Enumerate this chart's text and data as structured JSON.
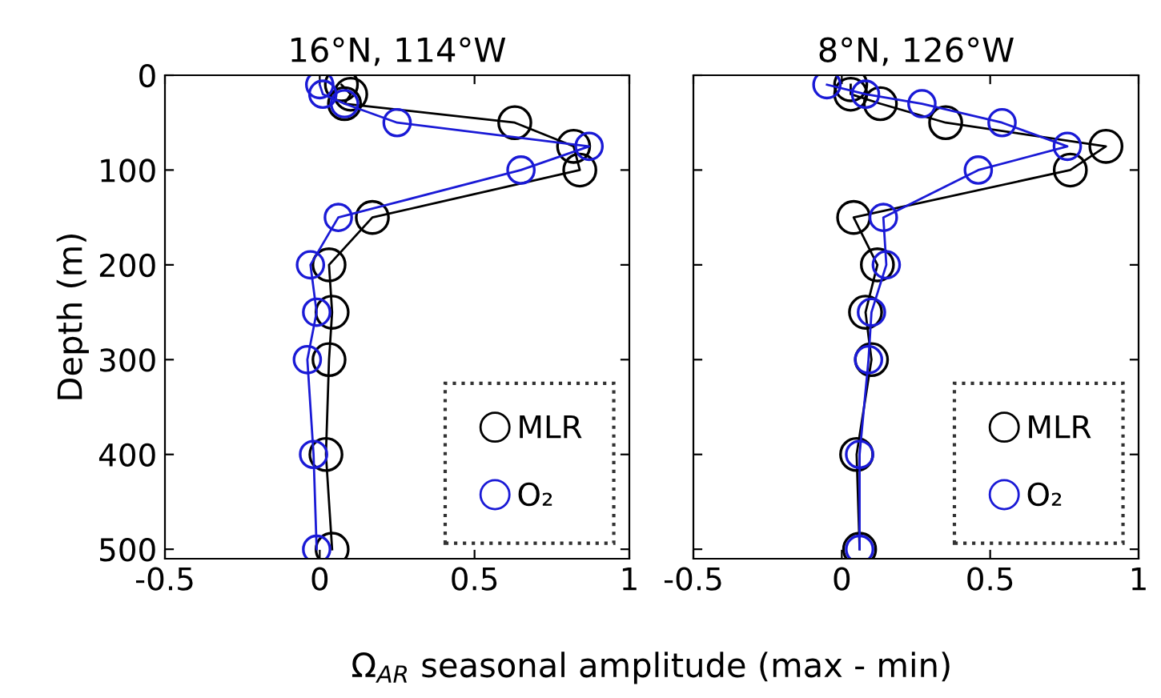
{
  "chart_data": [
    {
      "type": "line",
      "title": "16°N, 114°W",
      "ylabel": "Depth (m)",
      "series": [
        {
          "name": "MLR",
          "color": "#000000",
          "x": [
            0.07,
            0.1,
            0.08,
            0.63,
            0.82,
            0.84,
            0.17,
            0.03,
            0.04,
            0.03,
            0.02,
            0.04
          ],
          "values": [
            10,
            20,
            30,
            50,
            75,
            100,
            150,
            200,
            250,
            300,
            400,
            500
          ]
        },
        {
          "name": "O₂",
          "color": "#1a1ad6",
          "x": [
            0.0,
            0.01,
            0.08,
            0.25,
            0.87,
            0.65,
            0.06,
            -0.03,
            -0.01,
            -0.04,
            -0.02,
            -0.01
          ],
          "values": [
            10,
            20,
            30,
            50,
            75,
            100,
            150,
            200,
            250,
            300,
            400,
            500
          ]
        }
      ],
      "xlim": [
        -0.5,
        1
      ],
      "xticks": [
        -0.5,
        0,
        0.5,
        1
      ],
      "ylim": [
        510,
        0
      ],
      "yticks": [
        0,
        100,
        200,
        300,
        400,
        500
      ],
      "marker": "circle",
      "line_style": "solid",
      "legend": "bottom right",
      "grid": false
    },
    {
      "type": "line",
      "title": "8°N, 126°W",
      "xlabel": "Ω$_{AR}$ seasonal amplitude (max - min)",
      "series": [
        {
          "name": "MLR",
          "color": "#000000",
          "x": [
            0.03,
            0.03,
            0.13,
            0.35,
            0.89,
            0.77,
            0.04,
            0.12,
            0.08,
            0.1,
            0.05,
            0.06
          ],
          "values": [
            10,
            20,
            30,
            50,
            75,
            100,
            150,
            200,
            250,
            300,
            400,
            500
          ]
        },
        {
          "name": "O₂",
          "color": "#1a1ad6",
          "x": [
            -0.05,
            0.08,
            0.27,
            0.54,
            0.76,
            0.46,
            0.14,
            0.15,
            0.1,
            0.09,
            0.06,
            0.06
          ],
          "values": [
            10,
            20,
            30,
            50,
            75,
            100,
            150,
            200,
            250,
            300,
            400,
            500
          ]
        }
      ],
      "xlim": [
        -0.5,
        1
      ],
      "xticks": [
        -0.5,
        0,
        0.5,
        1
      ],
      "ylim": [
        510,
        0
      ],
      "yticks": [
        0,
        100,
        200,
        300,
        400,
        500
      ],
      "tick_labels": "x",
      "marker": "circle",
      "line_style": "solid",
      "legend": "bottom right",
      "grid": false
    }
  ]
}
